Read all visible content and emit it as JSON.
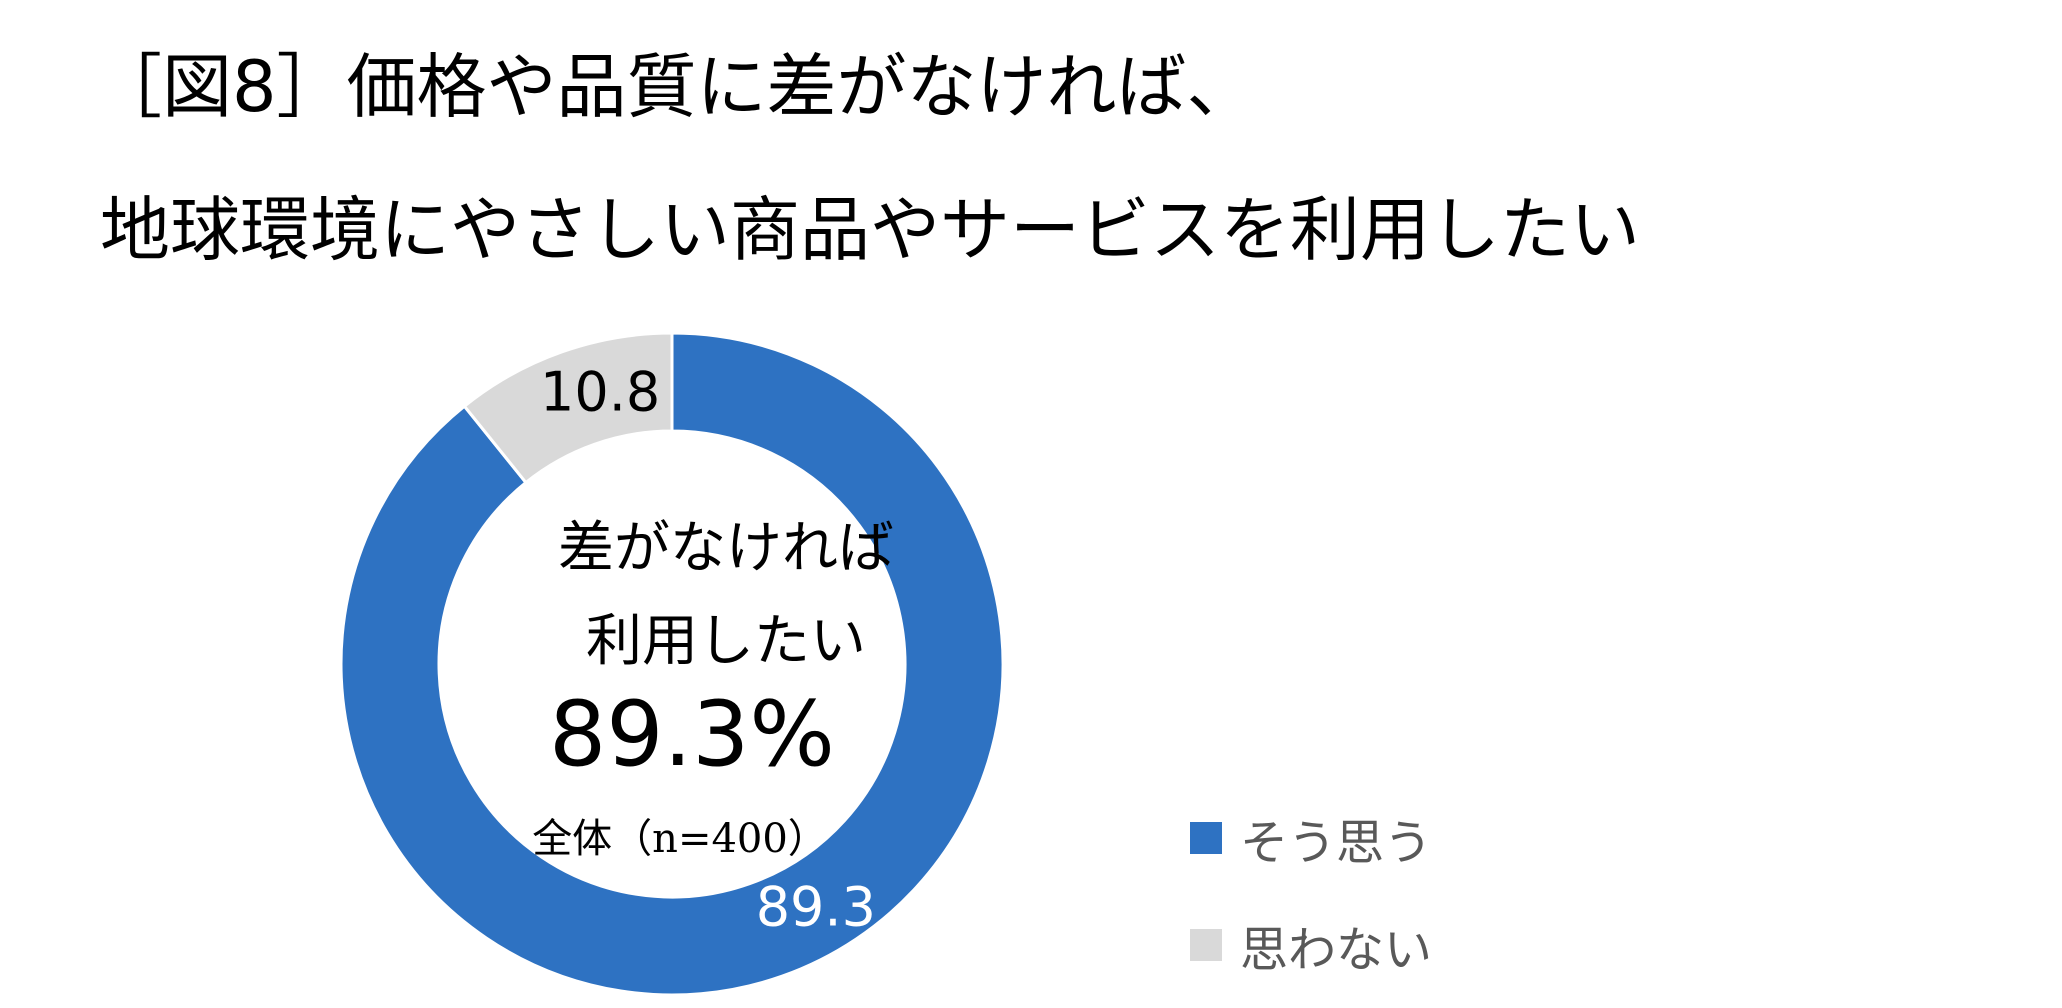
{
  "title": {
    "line1": "［図8］価格や品質に差がなければ、",
    "line2": "地球環境にやさしい商品やサービスを利用したい"
  },
  "center": {
    "line1": "差がなければ",
    "line2": "利用したい",
    "value": "89.3%",
    "base": "全体（n=400）"
  },
  "chart_data": {
    "type": "pie",
    "donut": true,
    "categories": [
      "そう思う",
      "思わない"
    ],
    "values": [
      89.3,
      10.8
    ],
    "data_labels": [
      "89.3",
      "10.8"
    ],
    "colors": [
      "#2E72C2",
      "#D9D9D9"
    ],
    "legend_position": "right"
  }
}
